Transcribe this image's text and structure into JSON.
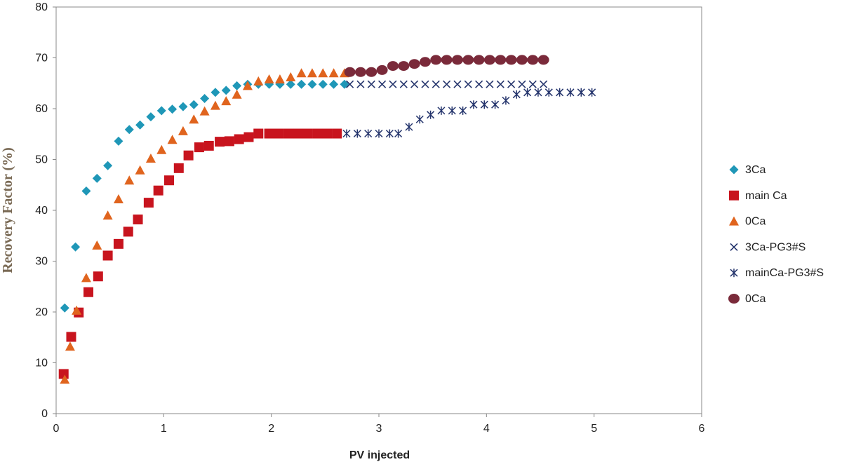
{
  "chart_data": {
    "type": "scatter",
    "xlabel": "PV injected",
    "ylabel": "Recovery Factor (%)",
    "xlim": [
      0,
      6
    ],
    "ylim": [
      0,
      80
    ],
    "xticks": [
      "0",
      "1",
      "2",
      "3",
      "4",
      "5",
      "6"
    ],
    "yticks": [
      "0",
      "10",
      "20",
      "30",
      "40",
      "50",
      "60",
      "70",
      "80"
    ],
    "grid": false,
    "legend_position": "right",
    "series": [
      {
        "name": "3Ca",
        "marker": "diamond",
        "color": "#1f97b7",
        "points": [
          [
            0.08,
            20.8
          ],
          [
            0.18,
            32.8
          ],
          [
            0.28,
            43.8
          ],
          [
            0.38,
            46.3
          ],
          [
            0.48,
            48.8
          ],
          [
            0.58,
            53.6
          ],
          [
            0.68,
            55.9
          ],
          [
            0.78,
            56.8
          ],
          [
            0.88,
            58.4
          ],
          [
            0.98,
            59.6
          ],
          [
            1.08,
            59.9
          ],
          [
            1.18,
            60.4
          ],
          [
            1.28,
            60.8
          ],
          [
            1.38,
            62.0
          ],
          [
            1.48,
            63.2
          ],
          [
            1.58,
            63.6
          ],
          [
            1.68,
            64.5
          ],
          [
            1.78,
            64.8
          ],
          [
            1.88,
            64.8
          ],
          [
            1.98,
            64.8
          ],
          [
            2.08,
            64.8
          ],
          [
            2.18,
            64.8
          ],
          [
            2.28,
            64.8
          ],
          [
            2.38,
            64.8
          ],
          [
            2.48,
            64.8
          ],
          [
            2.58,
            64.8
          ],
          [
            2.68,
            64.8
          ]
        ]
      },
      {
        "name": "main Ca",
        "marker": "square",
        "color": "#c8141e",
        "points": [
          [
            0.07,
            7.8
          ],
          [
            0.14,
            15.1
          ],
          [
            0.21,
            19.9
          ],
          [
            0.3,
            23.9
          ],
          [
            0.39,
            27.0
          ],
          [
            0.48,
            31.1
          ],
          [
            0.58,
            33.4
          ],
          [
            0.67,
            35.8
          ],
          [
            0.76,
            38.2
          ],
          [
            0.86,
            41.5
          ],
          [
            0.95,
            43.9
          ],
          [
            1.05,
            45.9
          ],
          [
            1.14,
            48.3
          ],
          [
            1.23,
            50.8
          ],
          [
            1.33,
            52.4
          ],
          [
            1.42,
            52.7
          ],
          [
            1.52,
            53.5
          ],
          [
            1.61,
            53.6
          ],
          [
            1.7,
            54.0
          ],
          [
            1.79,
            54.4
          ],
          [
            1.88,
            55.1
          ],
          [
            1.98,
            55.1
          ],
          [
            2.07,
            55.1
          ],
          [
            2.16,
            55.1
          ],
          [
            2.25,
            55.1
          ],
          [
            2.34,
            55.1
          ],
          [
            2.43,
            55.1
          ],
          [
            2.52,
            55.1
          ],
          [
            2.61,
            55.1
          ]
        ]
      },
      {
        "name": "0Ca",
        "marker": "triangle",
        "color": "#e0641e",
        "points": [
          [
            0.08,
            6.7
          ],
          [
            0.13,
            13.2
          ],
          [
            0.19,
            20.3
          ],
          [
            0.28,
            26.7
          ],
          [
            0.38,
            33.1
          ],
          [
            0.48,
            39.0
          ],
          [
            0.58,
            42.2
          ],
          [
            0.68,
            45.9
          ],
          [
            0.78,
            47.9
          ],
          [
            0.88,
            50.2
          ],
          [
            0.98,
            51.9
          ],
          [
            1.08,
            53.9
          ],
          [
            1.18,
            55.6
          ],
          [
            1.28,
            57.9
          ],
          [
            1.38,
            59.5
          ],
          [
            1.48,
            60.6
          ],
          [
            1.58,
            61.5
          ],
          [
            1.68,
            62.8
          ],
          [
            1.78,
            64.5
          ],
          [
            1.88,
            65.4
          ],
          [
            1.98,
            65.8
          ],
          [
            2.08,
            65.8
          ],
          [
            2.18,
            66.2
          ],
          [
            2.28,
            67.0
          ],
          [
            2.38,
            67.0
          ],
          [
            2.48,
            67.0
          ],
          [
            2.58,
            67.0
          ],
          [
            2.68,
            67.0
          ]
        ]
      },
      {
        "name": "3Ca-PG3#S",
        "marker": "x",
        "color": "#24346c",
        "points": [
          [
            2.73,
            64.8
          ],
          [
            2.83,
            64.8
          ],
          [
            2.93,
            64.8
          ],
          [
            3.03,
            64.8
          ],
          [
            3.13,
            64.8
          ],
          [
            3.23,
            64.8
          ],
          [
            3.33,
            64.8
          ],
          [
            3.43,
            64.8
          ],
          [
            3.53,
            64.8
          ],
          [
            3.63,
            64.8
          ],
          [
            3.73,
            64.8
          ],
          [
            3.83,
            64.8
          ],
          [
            3.93,
            64.8
          ],
          [
            4.03,
            64.8
          ],
          [
            4.13,
            64.8
          ],
          [
            4.23,
            64.8
          ],
          [
            4.33,
            64.8
          ],
          [
            4.43,
            64.8
          ],
          [
            4.53,
            64.8
          ]
        ]
      },
      {
        "name": "mainCa-PG3#S",
        "marker": "asterisk",
        "color": "#24346c",
        "points": [
          [
            2.7,
            55.1
          ],
          [
            2.8,
            55.1
          ],
          [
            2.9,
            55.1
          ],
          [
            3.0,
            55.1
          ],
          [
            3.1,
            55.1
          ],
          [
            3.18,
            55.1
          ],
          [
            3.28,
            56.4
          ],
          [
            3.38,
            57.9
          ],
          [
            3.48,
            58.8
          ],
          [
            3.58,
            59.6
          ],
          [
            3.68,
            59.6
          ],
          [
            3.78,
            59.6
          ],
          [
            3.88,
            60.8
          ],
          [
            3.98,
            60.8
          ],
          [
            4.08,
            60.8
          ],
          [
            4.18,
            61.6
          ],
          [
            4.28,
            62.8
          ],
          [
            4.38,
            63.2
          ],
          [
            4.48,
            63.2
          ],
          [
            4.58,
            63.2
          ],
          [
            4.68,
            63.2
          ],
          [
            4.78,
            63.2
          ],
          [
            4.88,
            63.2
          ],
          [
            4.98,
            63.2
          ]
        ]
      },
      {
        "name": "0Ca",
        "marker": "circle",
        "color": "#7a2a3a",
        "points": [
          [
            2.73,
            67.2
          ],
          [
            2.83,
            67.2
          ],
          [
            2.93,
            67.2
          ],
          [
            3.03,
            67.6
          ],
          [
            3.13,
            68.4
          ],
          [
            3.23,
            68.4
          ],
          [
            3.33,
            68.8
          ],
          [
            3.43,
            69.2
          ],
          [
            3.53,
            69.6
          ],
          [
            3.63,
            69.6
          ],
          [
            3.73,
            69.6
          ],
          [
            3.83,
            69.6
          ],
          [
            3.93,
            69.6
          ],
          [
            4.03,
            69.6
          ],
          [
            4.13,
            69.6
          ],
          [
            4.23,
            69.6
          ],
          [
            4.33,
            69.6
          ],
          [
            4.43,
            69.6
          ],
          [
            4.53,
            69.6
          ]
        ]
      }
    ]
  }
}
